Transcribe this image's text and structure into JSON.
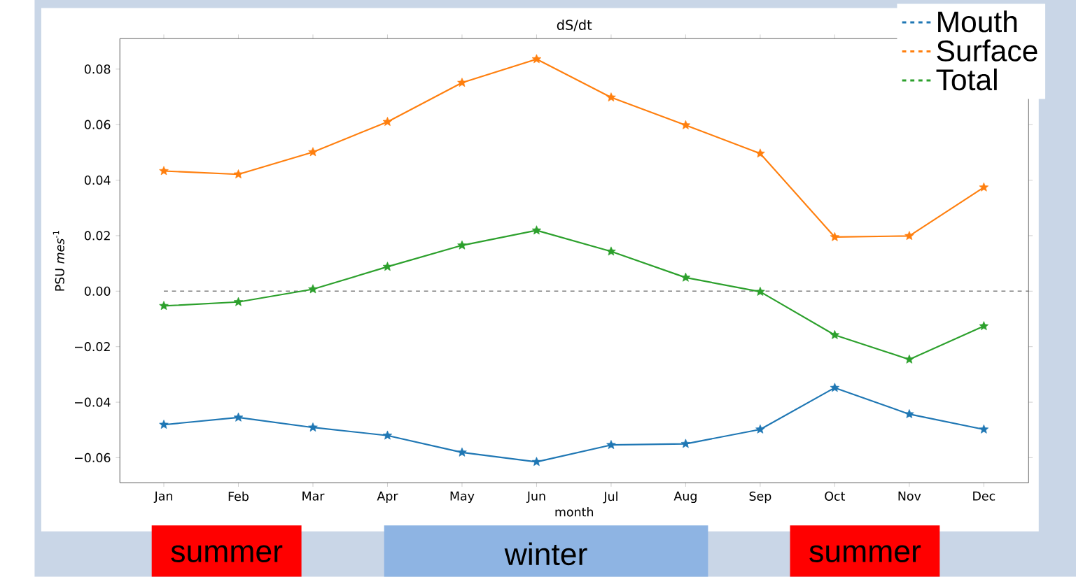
{
  "chart_data": {
    "type": "line",
    "title": "dS/dt",
    "xlabel": "month",
    "ylabel": "PSU *mes*$^{-1}$",
    "categories": [
      "Jan",
      "Feb",
      "Mar",
      "Apr",
      "May",
      "Jun",
      "Jul",
      "Aug",
      "Sep",
      "Oct",
      "Nov",
      "Dec"
    ],
    "series": [
      {
        "name": "Mouth",
        "color": "#1f77b4",
        "values": [
          -0.0481,
          -0.0455,
          -0.0491,
          -0.052,
          -0.0581,
          -0.0615,
          -0.0554,
          -0.055,
          -0.0498,
          -0.0348,
          -0.0443,
          -0.0498
        ]
      },
      {
        "name": "Surface",
        "color": "#ff7f0e",
        "values": [
          0.0433,
          0.0421,
          0.0501,
          0.061,
          0.0751,
          0.0836,
          0.0698,
          0.0598,
          0.0496,
          0.0195,
          0.0199,
          0.0374
        ]
      },
      {
        "name": "Total",
        "color": "#2ca02c",
        "values": [
          -0.0053,
          -0.0039,
          0.0007,
          0.0088,
          0.0165,
          0.0219,
          0.0143,
          0.0049,
          -0.0002,
          -0.0158,
          -0.0246,
          -0.0126
        ]
      }
    ],
    "ylim": [
      -0.069,
      0.091
    ],
    "yticks": [
      {
        "value": -0.06,
        "label": "−0.06"
      },
      {
        "value": -0.04,
        "label": "−0.04"
      },
      {
        "value": -0.02,
        "label": "−0.02"
      },
      {
        "value": 0.0,
        "label": "0.00"
      },
      {
        "value": 0.02,
        "label": "0.02"
      },
      {
        "value": 0.04,
        "label": "0.04"
      },
      {
        "value": 0.06,
        "label": "0.06"
      },
      {
        "value": 0.08,
        "label": "0.08"
      }
    ],
    "ref_lines": [
      {
        "axis": "y",
        "value": 0,
        "color": "#7f7f7f",
        "line_style": "dashed"
      }
    ],
    "marker": "star",
    "line_style": "solid",
    "grid": false,
    "legend": "top right",
    "annotations": [
      "summer",
      "winter",
      "summer"
    ]
  }
}
